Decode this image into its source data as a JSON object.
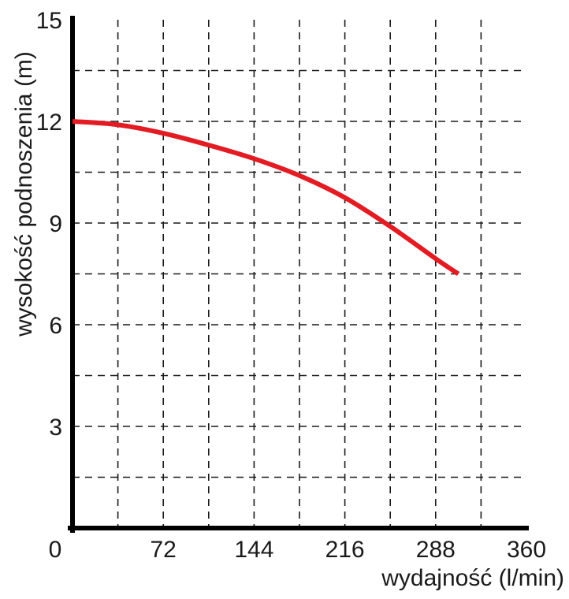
{
  "chart_data": {
    "type": "line",
    "title": "",
    "xlabel": "wydajność (l/min)",
    "ylabel": "wysokość podnoszenia (m)",
    "xlim": [
      0,
      360
    ],
    "ylim": [
      0,
      15
    ],
    "x_ticks": [
      0,
      72,
      144,
      216,
      288,
      360
    ],
    "x_tick_labels": [
      "0",
      "72",
      "144",
      "216",
      "288",
      "360"
    ],
    "y_ticks": [
      3,
      6,
      9,
      12,
      15
    ],
    "y_tick_labels": [
      "3",
      "6",
      "9",
      "12",
      "15"
    ],
    "grid": true,
    "grid_style": "dashed",
    "grid_x": [
      36,
      72,
      108,
      144,
      180,
      216,
      252,
      288,
      324
    ],
    "grid_y": [
      1.5,
      3,
      4.5,
      6,
      7.5,
      9,
      10.5,
      12,
      13.5
    ],
    "series": [
      {
        "color": "#e31b23",
        "x": [
          0,
          36,
          72,
          108,
          144,
          180,
          216,
          252,
          288,
          306
        ],
        "y": [
          12.0,
          11.9,
          11.65,
          11.3,
          10.9,
          10.4,
          9.75,
          8.9,
          7.95,
          7.5
        ]
      }
    ]
  }
}
